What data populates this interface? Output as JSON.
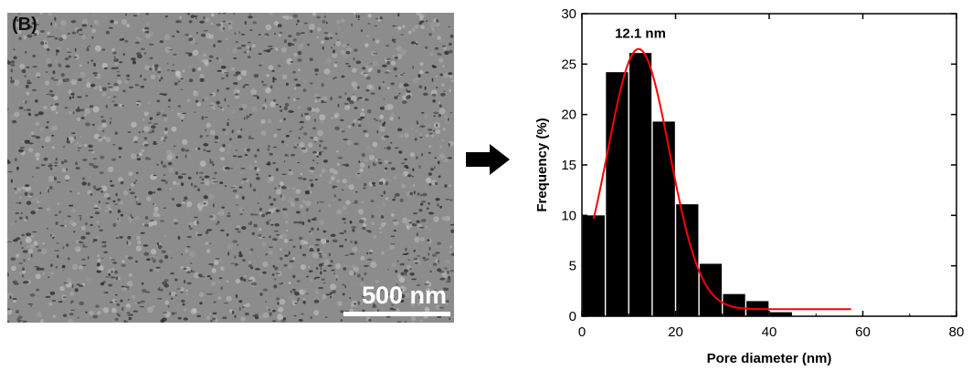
{
  "micrograph": {
    "panel_label": "(B)",
    "scale_bar_label": "500 nm"
  },
  "chart_data": {
    "type": "bar",
    "bin_width": 5,
    "x": [
      2.5,
      7.5,
      12.5,
      17.5,
      22.5,
      27.5,
      32.5,
      37.5,
      42.5
    ],
    "values": [
      10,
      24.2,
      26.1,
      19.3,
      11.1,
      5.2,
      2.2,
      1.5,
      0.4
    ],
    "fit": {
      "type": "gaussian",
      "peak": 12.1,
      "amplitude": 26.5,
      "sigma": 6.6,
      "baseline": 0.7,
      "x_range": [
        2.5,
        57.5
      ],
      "color": "#ff0000"
    },
    "annotation": "12.1 nm",
    "xlabel": "Pore diameter (nm)",
    "ylabel": "Frequency (%)",
    "xlim": [
      0,
      80
    ],
    "ylim": [
      0,
      30
    ],
    "xticks": [
      0,
      20,
      40,
      60,
      80
    ],
    "yticks": [
      0,
      5,
      10,
      15,
      20,
      25,
      30
    ],
    "grid": false,
    "bar_color": "#000000"
  }
}
